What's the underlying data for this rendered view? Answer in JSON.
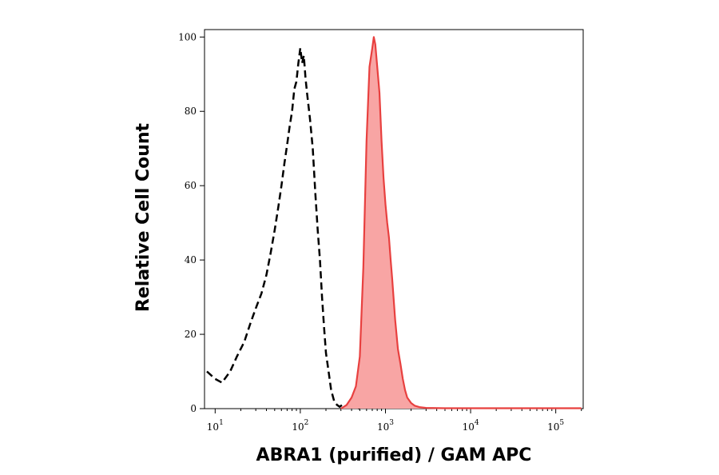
{
  "chart_data": {
    "type": "area",
    "xlabel": "ABRA1 (purified) / GAM APC",
    "ylabel": "Relative Cell Count",
    "x_scale": "log",
    "xlim": [
      7.5,
      210000
    ],
    "ylim": [
      0,
      102
    ],
    "x_ticks": [
      {
        "base": "10",
        "exp": "1",
        "value": 10
      },
      {
        "base": "10",
        "exp": "2",
        "value": 100
      },
      {
        "base": "10",
        "exp": "3",
        "value": 1000
      },
      {
        "base": "10",
        "exp": "4",
        "value": 10000
      },
      {
        "base": "10",
        "exp": "5",
        "value": 100000
      }
    ],
    "y_ticks": [
      0,
      20,
      40,
      60,
      80,
      100
    ],
    "grid": false,
    "series": [
      {
        "style": "dashed-line",
        "color": "#000000",
        "x": [
          8,
          10,
          12,
          15,
          18,
          22,
          26,
          30,
          35,
          40,
          45,
          50,
          55,
          60,
          65,
          70,
          75,
          80,
          85,
          90,
          95,
          100,
          105,
          110,
          115,
          120,
          130,
          140,
          150,
          160,
          170,
          180,
          190,
          200,
          215,
          230,
          250,
          270,
          290,
          310,
          330,
          360,
          400,
          450,
          500
        ],
        "y": [
          10,
          8,
          7,
          10,
          14,
          18,
          23,
          27,
          31,
          36,
          42,
          48,
          54,
          60,
          66,
          71,
          76,
          80,
          86,
          88,
          93,
          97,
          93,
          95,
          89,
          85,
          78,
          70,
          58,
          48,
          40,
          30,
          22,
          15,
          10,
          5,
          2,
          1,
          0.5,
          1,
          0.5,
          0.5,
          0.5,
          0.3,
          0
        ]
      },
      {
        "style": "filled",
        "color": "#e8403f",
        "fill": "#f8a5a4",
        "x": [
          300,
          350,
          400,
          450,
          500,
          550,
          600,
          650,
          700,
          730,
          760,
          800,
          850,
          900,
          950,
          1000,
          1050,
          1100,
          1150,
          1200,
          1300,
          1400,
          1500,
          1600,
          1700,
          1800,
          2000,
          2200,
          2500,
          3000,
          5000,
          10000,
          50000,
          200000
        ],
        "y": [
          0,
          1,
          3,
          6,
          14,
          38,
          72,
          92,
          97,
          100,
          98,
          92,
          85,
          72,
          62,
          55,
          50,
          46,
          40,
          35,
          24,
          16,
          12,
          8,
          5,
          3,
          1.5,
          0.8,
          0.4,
          0.2,
          0.1,
          0.1,
          0.1,
          0.1
        ]
      }
    ]
  }
}
